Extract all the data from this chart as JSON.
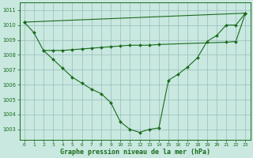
{
  "bg_color": "#c8e8e0",
  "grid_color": "#99bbbb",
  "line_color": "#1a6b1a",
  "marker_color": "#1a6b1a",
  "xlabel_label": "Graphe pression niveau de la mer (hPa)",
  "xlim": [
    -0.5,
    23.5
  ],
  "ylim": [
    1002.3,
    1011.5
  ],
  "yticks": [
    1003,
    1004,
    1005,
    1006,
    1007,
    1008,
    1009,
    1010,
    1011
  ],
  "xticks": [
    0,
    1,
    2,
    3,
    4,
    5,
    6,
    7,
    8,
    9,
    10,
    11,
    12,
    13,
    14,
    15,
    16,
    17,
    18,
    19,
    20,
    21,
    22,
    23
  ],
  "series1_x": [
    0,
    1,
    2,
    3,
    4,
    5,
    6,
    7,
    8,
    9,
    10,
    11,
    12,
    13,
    14,
    15,
    16,
    17,
    18,
    19,
    20,
    21,
    22,
    23
  ],
  "series1_y": [
    1010.2,
    1009.5,
    1008.3,
    1007.7,
    1007.1,
    1006.5,
    1006.1,
    1005.7,
    1005.4,
    1004.8,
    1003.5,
    1003.0,
    1002.8,
    1003.0,
    1003.1,
    1006.3,
    1006.7,
    1007.2,
    1007.8,
    1008.9,
    1009.3,
    1010.0,
    1010.0,
    1010.8
  ],
  "series2_x": [
    2,
    3,
    4,
    5,
    6,
    7,
    8,
    9,
    10,
    11,
    12,
    13,
    14,
    21,
    22,
    23
  ],
  "series2_y": [
    1008.3,
    1008.3,
    1008.3,
    1008.35,
    1008.4,
    1008.45,
    1008.5,
    1008.55,
    1008.6,
    1008.65,
    1008.65,
    1008.65,
    1008.7,
    1008.85,
    1008.9,
    1010.8
  ],
  "series3_x": [
    0,
    23
  ],
  "series3_y": [
    1010.2,
    1010.8
  ]
}
